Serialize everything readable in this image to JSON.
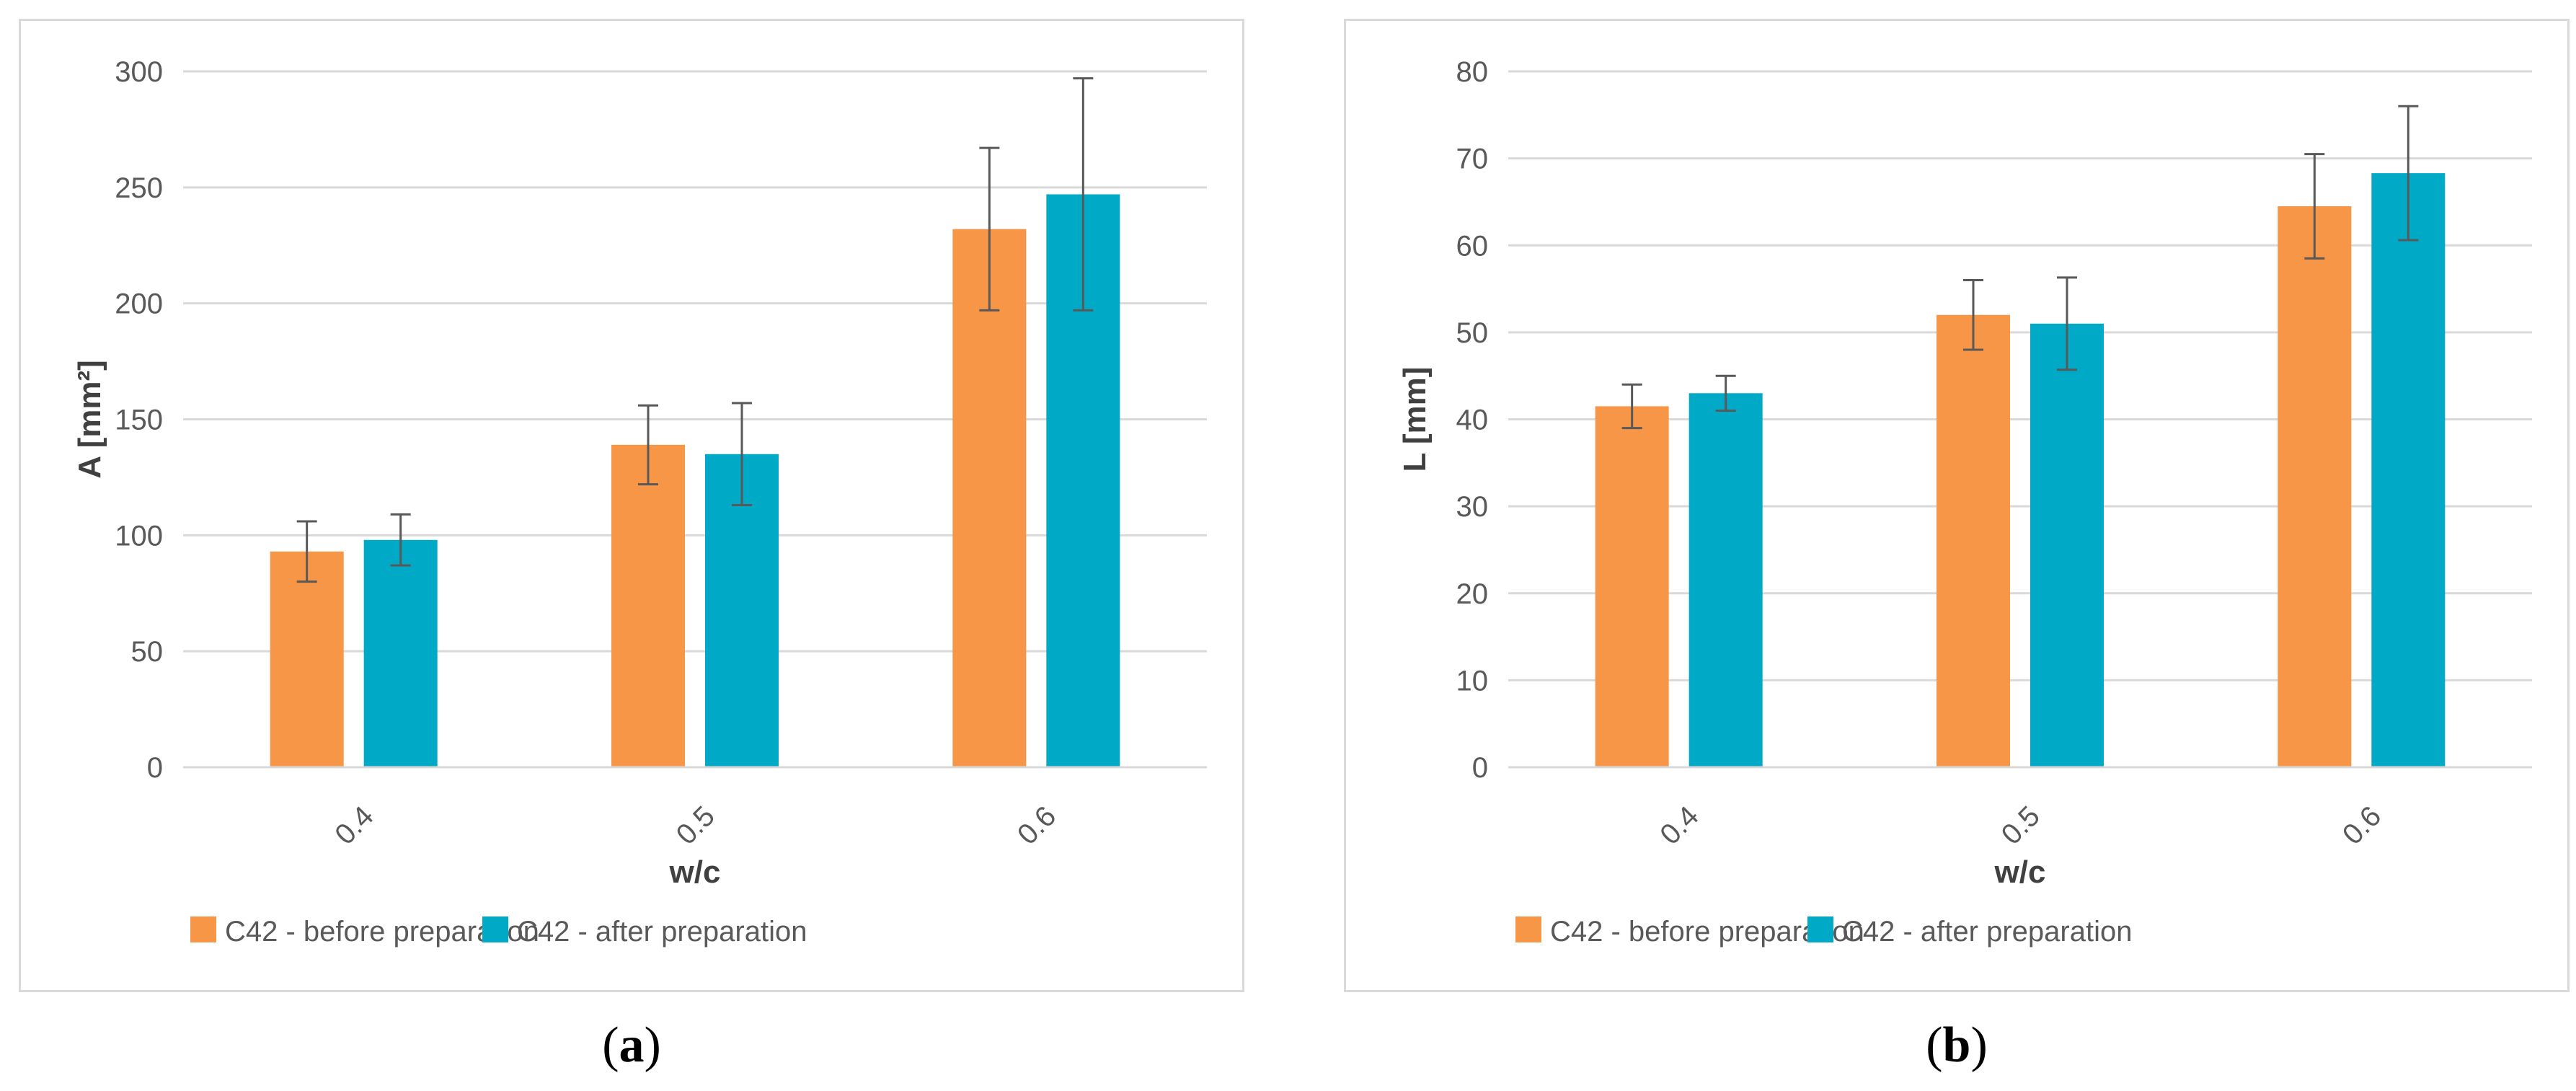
{
  "colors": {
    "series1": "#f79646",
    "series2": "#00a9c6",
    "grid": "#d9d9d9",
    "error": "#595959"
  },
  "captions": {
    "a": "a",
    "b": "b"
  },
  "chart_data": [
    {
      "type": "bar",
      "categories": [
        "0.4",
        "0.5",
        "0.6"
      ],
      "series": [
        {
          "name": "C42 - before preparation",
          "values": [
            93,
            139,
            232
          ],
          "errors": [
            13,
            17,
            35
          ]
        },
        {
          "name": "C42 - after preparation",
          "values": [
            98,
            135,
            247
          ],
          "errors": [
            11,
            22,
            50
          ]
        }
      ],
      "xlabel": "w/c",
      "ylabel": "A [mm²]",
      "ylim": [
        0,
        300
      ],
      "yticks": [
        "0",
        "50",
        "100",
        "150",
        "200",
        "250",
        "300"
      ],
      "grid": true,
      "legend": "bottom"
    },
    {
      "type": "bar",
      "categories": [
        "0.4",
        "0.5",
        "0.6"
      ],
      "series": [
        {
          "name": "C42 - before preparation",
          "values": [
            41.5,
            52,
            64.5
          ],
          "errors": [
            2.5,
            4,
            6
          ]
        },
        {
          "name": "C42 - after preparation",
          "values": [
            43,
            51,
            68.3
          ],
          "errors": [
            2,
            5.3,
            7.7
          ]
        }
      ],
      "xlabel": "w/c",
      "ylabel": "L [mm]",
      "ylim": [
        0,
        80
      ],
      "yticks": [
        "0",
        "10",
        "20",
        "30",
        "40",
        "50",
        "60",
        "70",
        "80"
      ],
      "grid": true,
      "legend": "bottom"
    }
  ]
}
